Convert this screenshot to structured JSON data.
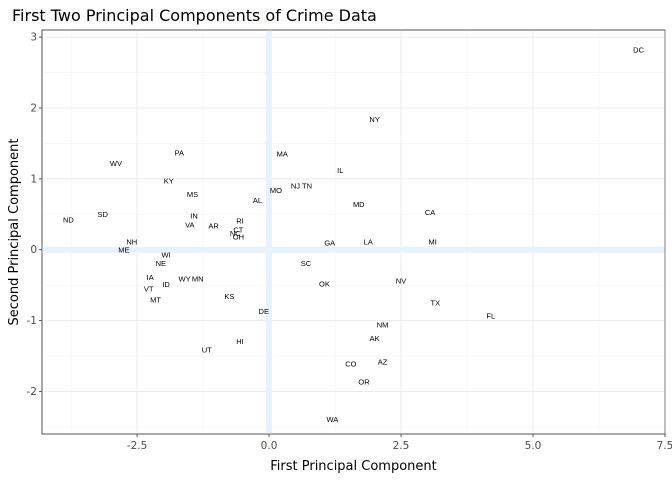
{
  "chart_data": {
    "type": "scatter",
    "title": "First Two Principal Components of Crime Data",
    "xlabel": "First Principal Component",
    "ylabel": "Second Principal Component",
    "xlim": [
      -4.3,
      7.5
    ],
    "ylim": [
      -2.6,
      3.1
    ],
    "x_ticks": [
      -2.5,
      0.0,
      2.5,
      5.0,
      7.5
    ],
    "x_tick_labels": [
      "-2.5",
      "0.0",
      "2.5",
      "5.0",
      "7.5"
    ],
    "y_ticks": [
      -2,
      -1,
      0,
      1,
      2,
      3
    ],
    "y_tick_labels": [
      "-2",
      "-1",
      "0",
      "1",
      "2",
      "3"
    ],
    "grid": true,
    "reference_lines": {
      "x": 0,
      "y": 0,
      "color": "#e6f2ff"
    },
    "points": [
      {
        "label": "DC",
        "x": 7.0,
        "y": 2.82
      },
      {
        "label": "NY",
        "x": 2.0,
        "y": 1.84
      },
      {
        "label": "PA",
        "x": -1.7,
        "y": 1.37
      },
      {
        "label": "MA",
        "x": 0.25,
        "y": 1.35
      },
      {
        "label": "WV",
        "x": -2.9,
        "y": 1.22
      },
      {
        "label": "IL",
        "x": 1.35,
        "y": 1.12
      },
      {
        "label": "KY",
        "x": -1.9,
        "y": 0.97
      },
      {
        "label": "NJ",
        "x": 0.5,
        "y": 0.9
      },
      {
        "label": "TN",
        "x": 0.72,
        "y": 0.9
      },
      {
        "label": "MO",
        "x": 0.13,
        "y": 0.84
      },
      {
        "label": "MS",
        "x": -1.45,
        "y": 0.78
      },
      {
        "label": "AL",
        "x": -0.22,
        "y": 0.7
      },
      {
        "label": "MD",
        "x": 1.7,
        "y": 0.64
      },
      {
        "label": "CA",
        "x": 3.05,
        "y": 0.53
      },
      {
        "label": "SD",
        "x": -3.15,
        "y": 0.5
      },
      {
        "label": "IN",
        "x": -1.42,
        "y": 0.48
      },
      {
        "label": "ND",
        "x": -3.8,
        "y": 0.42
      },
      {
        "label": "RI",
        "x": -0.55,
        "y": 0.41
      },
      {
        "label": "VA",
        "x": -1.5,
        "y": 0.35
      },
      {
        "label": "AR",
        "x": -1.05,
        "y": 0.34
      },
      {
        "label": "CT",
        "x": -0.58,
        "y": 0.28
      },
      {
        "label": "NC",
        "x": -0.64,
        "y": 0.23
      },
      {
        "label": "OH",
        "x": -0.58,
        "y": 0.18
      },
      {
        "label": "NH",
        "x": -2.6,
        "y": 0.11
      },
      {
        "label": "GA",
        "x": 1.15,
        "y": 0.1
      },
      {
        "label": "LA",
        "x": 1.88,
        "y": 0.11
      },
      {
        "label": "MI",
        "x": 3.1,
        "y": 0.11
      },
      {
        "label": "ME",
        "x": -2.75,
        "y": 0.0
      },
      {
        "label": "WI",
        "x": -1.95,
        "y": -0.07
      },
      {
        "label": "NE",
        "x": -2.05,
        "y": -0.19
      },
      {
        "label": "SC",
        "x": 0.7,
        "y": -0.19
      },
      {
        "label": "IA",
        "x": -2.25,
        "y": -0.39
      },
      {
        "label": "WY",
        "x": -1.6,
        "y": -0.41
      },
      {
        "label": "MN",
        "x": -1.35,
        "y": -0.41
      },
      {
        "label": "NV",
        "x": 2.5,
        "y": -0.44
      },
      {
        "label": "OK",
        "x": 1.05,
        "y": -0.48
      },
      {
        "label": "ID",
        "x": -1.95,
        "y": -0.49
      },
      {
        "label": "VT",
        "x": -2.28,
        "y": -0.55
      },
      {
        "label": "KS",
        "x": -0.75,
        "y": -0.66
      },
      {
        "label": "MT",
        "x": -2.15,
        "y": -0.71
      },
      {
        "label": "TX",
        "x": 3.15,
        "y": -0.75
      },
      {
        "label": "DE",
        "x": -0.1,
        "y": -0.87
      },
      {
        "label": "FL",
        "x": 4.2,
        "y": -0.93
      },
      {
        "label": "NM",
        "x": 2.15,
        "y": -1.06
      },
      {
        "label": "AK",
        "x": 2.0,
        "y": -1.25
      },
      {
        "label": "HI",
        "x": -0.55,
        "y": -1.29
      },
      {
        "label": "UT",
        "x": -1.18,
        "y": -1.41
      },
      {
        "label": "AZ",
        "x": 2.15,
        "y": -1.58
      },
      {
        "label": "CO",
        "x": 1.55,
        "y": -1.61
      },
      {
        "label": "OR",
        "x": 1.8,
        "y": -1.86
      },
      {
        "label": "WA",
        "x": 1.2,
        "y": -2.39
      }
    ]
  }
}
